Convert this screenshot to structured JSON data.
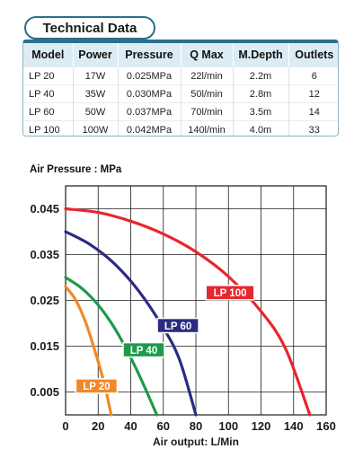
{
  "header": {
    "title": "Technical Data"
  },
  "table": {
    "columns": [
      "Model",
      "Power",
      "Pressure",
      "Q Max",
      "M.Depth",
      "Outlets"
    ],
    "rows": [
      [
        "LP 20",
        "17W",
        "0.025MPa",
        "22l/min",
        "2.2m",
        "6"
      ],
      [
        "LP 40",
        "35W",
        "0.030MPa",
        "50l/min",
        "2.8m",
        "12"
      ],
      [
        "LP 60",
        "50W",
        "0.037MPa",
        "70l/min",
        "3.5m",
        "14"
      ],
      [
        "LP 100",
        "100W",
        "0.042MPa",
        "140l/min",
        "4.0m",
        "33"
      ]
    ]
  },
  "chart_data": {
    "type": "line",
    "title": "Air Pressure : MPa",
    "xlabel": "Air output: L/Min",
    "ylabel": "",
    "xlim": [
      0,
      160
    ],
    "ylim": [
      0,
      0.05
    ],
    "x_ticks": [
      "0",
      "20",
      "40",
      "60",
      "80",
      "100",
      "120",
      "140",
      "160"
    ],
    "y_ticks": [
      "0.005",
      "0.015",
      "0.025",
      "0.035",
      "0.045"
    ],
    "y_tick_values": [
      0.005,
      0.015,
      0.025,
      0.035,
      0.045
    ],
    "grid": true,
    "series": [
      {
        "name": "LP 100",
        "color": "#e8262d",
        "points": [
          [
            0,
            0.045
          ],
          [
            20,
            0.0442
          ],
          [
            40,
            0.0423
          ],
          [
            60,
            0.0395
          ],
          [
            80,
            0.0356
          ],
          [
            100,
            0.0302
          ],
          [
            120,
            0.0226
          ],
          [
            135,
            0.0145
          ],
          [
            150,
            0
          ]
        ]
      },
      {
        "name": "LP 60",
        "color": "#2b2c80",
        "points": [
          [
            0,
            0.04
          ],
          [
            15,
            0.0372
          ],
          [
            30,
            0.033
          ],
          [
            45,
            0.027
          ],
          [
            60,
            0.019
          ],
          [
            70,
            0.012
          ],
          [
            80,
            0
          ]
        ]
      },
      {
        "name": "LP 40",
        "color": "#1e9a4a",
        "points": [
          [
            0,
            0.03
          ],
          [
            10,
            0.0276
          ],
          [
            20,
            0.024
          ],
          [
            30,
            0.019
          ],
          [
            40,
            0.0125
          ],
          [
            48,
            0.0065
          ],
          [
            56,
            0
          ]
        ]
      },
      {
        "name": "LP 20",
        "color": "#f0892a",
        "points": [
          [
            0,
            0.028
          ],
          [
            6,
            0.0252
          ],
          [
            12,
            0.0205
          ],
          [
            18,
            0.014
          ],
          [
            24,
            0.0065
          ],
          [
            28,
            0
          ]
        ]
      }
    ],
    "labels": [
      {
        "text": "LP 100",
        "color": "#e8262d",
        "x": 101,
        "y": 0.0267
      },
      {
        "text": "LP 60",
        "color": "#2b2c80",
        "x": 69,
        "y": 0.0195
      },
      {
        "text": "LP 40",
        "color": "#1e9a4a",
        "x": 48,
        "y": 0.0142
      },
      {
        "text": "LP 20",
        "color": "#f0892a",
        "x": 19,
        "y": 0.0063
      }
    ]
  }
}
